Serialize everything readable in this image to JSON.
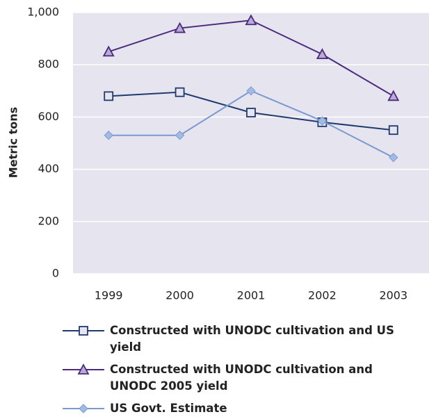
{
  "chart_data": {
    "type": "line",
    "y_label": "Metric tons",
    "categories": [
      "1999",
      "2000",
      "2001",
      "2002",
      "2003"
    ],
    "series": [
      {
        "name": "Constructed with UNODC cultivation and US yield",
        "color": "#1f3a6e",
        "marker": "square",
        "marker_fill": "#e6e4ef",
        "values": [
          680,
          695,
          617,
          580,
          550
        ]
      },
      {
        "name": "Constructed with UNODC cultivation and UNODC 2005 yield",
        "color": "#4a2a7c",
        "marker": "triangle",
        "marker_fill": "#b9abd6",
        "values": [
          850,
          940,
          970,
          840,
          680
        ]
      },
      {
        "name": "US Govt. Estimate",
        "color": "#7b9ad0",
        "marker": "diamond",
        "marker_fill": "#a3bbe3",
        "values": [
          530,
          530,
          700,
          585,
          445
        ]
      }
    ],
    "ylim": [
      0,
      1000
    ],
    "yticks": [
      0,
      200,
      400,
      600,
      800,
      {
        "value": 1000,
        "label": "1,000"
      }
    ],
    "grid": true,
    "background": "#e6e4ef"
  }
}
